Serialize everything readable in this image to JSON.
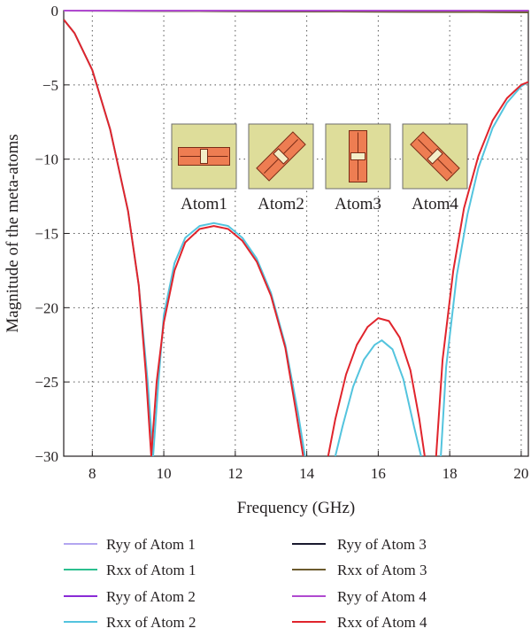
{
  "chart_data": {
    "type": "line",
    "xlabel": "Frequency (GHz)",
    "ylabel": "Magnitude of the meta-atoms",
    "xlim": [
      7.2,
      20.2
    ],
    "ylim": [
      -30,
      0
    ],
    "xticks": [
      8,
      10,
      12,
      14,
      16,
      18,
      20
    ],
    "yticks": [
      0,
      -5,
      -10,
      -15,
      -20,
      -25,
      -30
    ],
    "grid": true,
    "legend_position": "bottom",
    "inset_labels": [
      "Atom1",
      "Atom2",
      "Atom3",
      "Atom4"
    ],
    "colors": {
      "ryy_atom1": "#b3a6f0",
      "rxx_atom1": "#2bbf8f",
      "ryy_atom2": "#8a2bd6",
      "rxx_atom2": "#53c4de",
      "ryy_atom3": "#1a1a2e",
      "rxx_atom3": "#6b5a2e",
      "ryy_atom4": "#b04ad0",
      "rxx_atom4": "#e0242c",
      "atom_bg": "#dedd9a",
      "atom_bar": "#ee7d52"
    },
    "series": [
      {
        "name": "Ryy of Atom 1",
        "color": "#b3a6f0",
        "x": [
          7.2,
          20.2
        ],
        "y": [
          0,
          0
        ]
      },
      {
        "name": "Rxx of Atom 1",
        "color": "#2bbf8f",
        "x": [
          7.2,
          20.2
        ],
        "y": [
          0,
          0
        ]
      },
      {
        "name": "Ryy of Atom 2",
        "color": "#8a2bd6",
        "x": [
          7.2,
          20.2
        ],
        "y": [
          0,
          0
        ]
      },
      {
        "name": "Rxx of Atom 2",
        "color": "#53c4de",
        "x": [
          7.2,
          7.5,
          8.0,
          8.5,
          9.0,
          9.3,
          9.55,
          9.7,
          9.85,
          10.0,
          10.3,
          10.6,
          11.0,
          11.4,
          11.8,
          12.2,
          12.6,
          13.0,
          13.4,
          13.75,
          13.95,
          14.8,
          15.0,
          15.3,
          15.6,
          15.9,
          16.1,
          16.4,
          16.7,
          17.0,
          17.2,
          17.75,
          17.9,
          18.2,
          18.5,
          18.8,
          19.2,
          19.6,
          20.0,
          20.2
        ],
        "y": [
          -0.6,
          -1.5,
          -4.0,
          -8.0,
          -13.5,
          -18.5,
          -25,
          -30,
          -25,
          -20.5,
          -17.0,
          -15.3,
          -14.5,
          -14.3,
          -14.5,
          -15.3,
          -16.7,
          -19.0,
          -22.5,
          -27.0,
          -30,
          -30,
          -28.0,
          -25.3,
          -23.5,
          -22.5,
          -22.2,
          -22.8,
          -24.8,
          -28.0,
          -30,
          -30,
          -24.0,
          -17.8,
          -13.7,
          -10.6,
          -7.9,
          -6.2,
          -5.1,
          -4.8
        ]
      },
      {
        "name": "Ryy of Atom 3",
        "color": "#1a1a2e",
        "x": [
          7.2,
          20.2
        ],
        "y": [
          0,
          -0.1
        ]
      },
      {
        "name": "Rxx of Atom 3",
        "color": "#6b5a2e",
        "x": [
          7.2,
          20.2
        ],
        "y": [
          0,
          -0.1
        ]
      },
      {
        "name": "Ryy of Atom 4",
        "color": "#b04ad0",
        "x": [
          7.2,
          20.2
        ],
        "y": [
          0,
          0
        ]
      },
      {
        "name": "Rxx of Atom 4",
        "color": "#e0242c",
        "x": [
          7.2,
          7.5,
          8.0,
          8.5,
          9.0,
          9.3,
          9.5,
          9.65,
          9.8,
          10.0,
          10.3,
          10.6,
          11.0,
          11.4,
          11.8,
          12.2,
          12.6,
          13.0,
          13.4,
          13.7,
          13.9,
          14.6,
          14.8,
          15.1,
          15.4,
          15.7,
          16.0,
          16.3,
          16.6,
          16.9,
          17.15,
          17.3,
          17.62,
          17.8,
          18.1,
          18.4,
          18.8,
          19.2,
          19.6,
          20.0,
          20.2
        ],
        "y": [
          -0.6,
          -1.5,
          -4.0,
          -8.0,
          -13.5,
          -18.5,
          -24.5,
          -30,
          -25,
          -21.0,
          -17.5,
          -15.6,
          -14.7,
          -14.5,
          -14.7,
          -15.5,
          -16.9,
          -19.2,
          -22.7,
          -27.0,
          -30,
          -30,
          -27.5,
          -24.5,
          -22.5,
          -21.3,
          -20.7,
          -20.9,
          -22.0,
          -24.2,
          -27.5,
          -30,
          -30,
          -23.5,
          -17.5,
          -13.3,
          -9.8,
          -7.4,
          -5.9,
          -5.0,
          -4.8
        ]
      }
    ]
  }
}
